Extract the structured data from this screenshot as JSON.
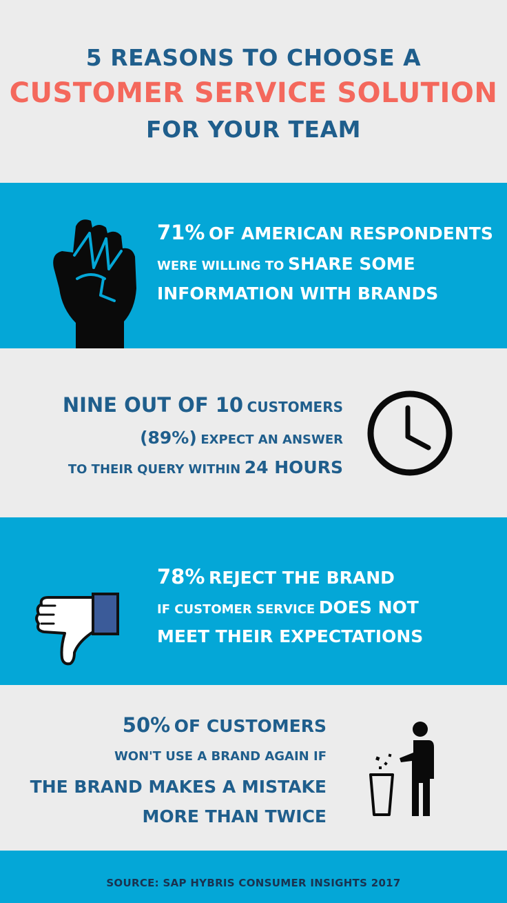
{
  "header": {
    "line1": "5 REASONS TO CHOOSE A",
    "line2": "CUSTOMER SERVICE SOLUTION",
    "line3": "FOR YOUR TEAM"
  },
  "stat1": {
    "big": "71%",
    "l1_rest": "OF AMERICAN RESPONDENTS",
    "l2_small": "WERE WILLING TO",
    "l2_big": "SHARE SOME",
    "l3": "INFORMATION WITH BRANDS",
    "icon": "raised-fist-icon"
  },
  "stat2": {
    "l1_big": "NINE OUT OF 10",
    "l1_small": "CUSTOMERS",
    "l2_big": "(89%)",
    "l2_small": "EXPECT AN ANSWER",
    "l3_small": "TO THEIR QUERY WITHIN",
    "l3_big": "24 HOURS",
    "icon": "clock-icon"
  },
  "stat3": {
    "big": "78%",
    "l1_rest": "REJECT THE BRAND",
    "l2_small": "IF CUSTOMER SERVICE",
    "l2_big": "DOES NOT",
    "l3": "MEET THEIR EXPECTATIONS",
    "icon": "thumbs-down-icon"
  },
  "stat4": {
    "big": "50%",
    "l1_rest": "OF CUSTOMERS",
    "l2": "WON'T USE A BRAND AGAIN IF",
    "l3": "THE BRAND MAKES A MISTAKE",
    "l4": "MORE THAN TWICE",
    "icon": "trash-person-icon"
  },
  "footer": {
    "source": "SOURCE: SAP HYBRIS CONSUMER INSIGHTS 2017"
  },
  "colors": {
    "blue_band": "#04a7d7",
    "grey_band": "#ececec",
    "navy": "#1f5e8c",
    "coral": "#f4685c"
  }
}
